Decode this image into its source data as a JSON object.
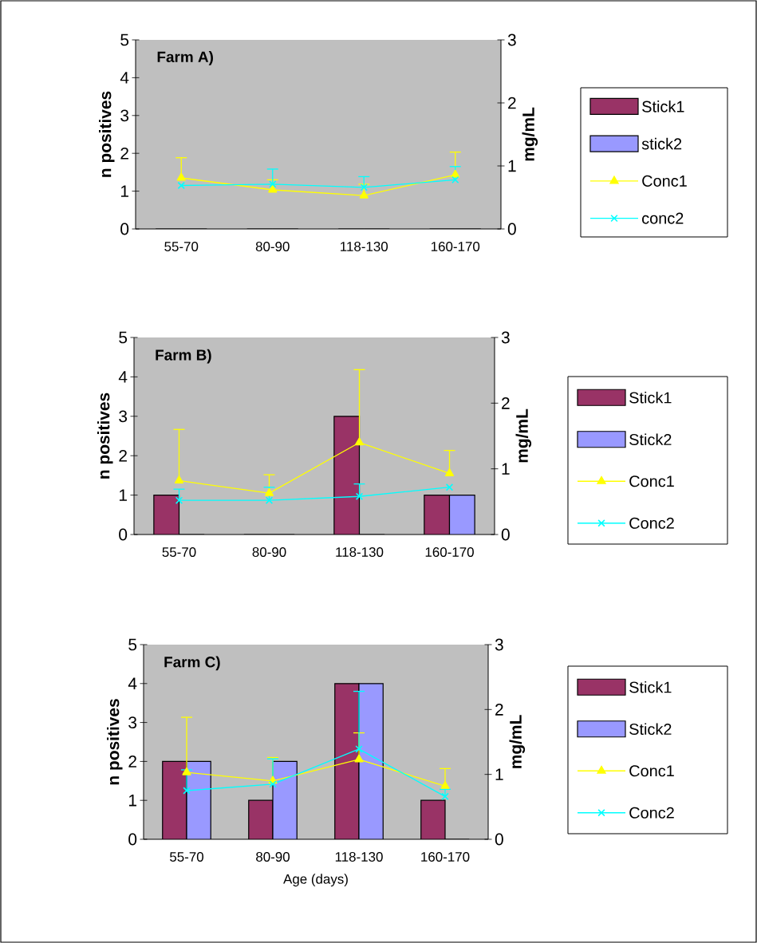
{
  "chart_data": [
    {
      "type": "bar",
      "title": "Farm A)",
      "categories": [
        "55-70",
        "80-90",
        "118-130",
        "160-170"
      ],
      "ylabel": "n positives",
      "y2label": "mg/mL",
      "ylim": [
        0,
        5
      ],
      "yticks": [
        0,
        1,
        2,
        3,
        4,
        5
      ],
      "y2lim": [
        0,
        3
      ],
      "y2ticks": [
        0,
        1,
        2,
        3
      ],
      "legend": "right",
      "series": [
        {
          "name": "Stick1",
          "color": "#993366",
          "values": [
            0,
            0,
            0,
            0
          ]
        },
        {
          "name": "stick2",
          "color": "#9999ff",
          "values": [
            0,
            0,
            0,
            0
          ]
        },
        {
          "name": "Conc1",
          "type": "line",
          "axis": "y2",
          "marker": "triangle",
          "color": "#ffff00",
          "values": [
            0.81,
            0.62,
            0.53,
            0.86
          ],
          "errors": [
            [
              0.81,
              1.13
            ],
            [
              0.62,
              0.78
            ],
            [
              0.53,
              0.71
            ],
            [
              0.86,
              1.22
            ]
          ]
        },
        {
          "name": "conc2",
          "type": "line",
          "axis": "y2",
          "marker": "cross",
          "color": "#00ffff",
          "values": [
            0.69,
            0.71,
            0.66,
            0.78
          ],
          "errors": [
            null,
            [
              0.71,
              0.95
            ],
            [
              0.66,
              0.83
            ],
            [
              0.78,
              0.99
            ]
          ]
        }
      ]
    },
    {
      "type": "bar",
      "title": "Farm B)",
      "categories": [
        "55-70",
        "80-90",
        "118-130",
        "160-170"
      ],
      "ylabel": "n positives",
      "y2label": "mg/mL",
      "ylim": [
        0,
        5
      ],
      "yticks": [
        0,
        1,
        2,
        3,
        4,
        5
      ],
      "y2lim": [
        0,
        3
      ],
      "y2ticks": [
        0,
        1,
        2,
        3
      ],
      "legend": "right",
      "series": [
        {
          "name": "Stick1",
          "color": "#993366",
          "values": [
            1,
            0,
            3,
            1
          ]
        },
        {
          "name": "Stick2",
          "color": "#9999ff",
          "values": [
            0,
            0,
            0,
            1
          ]
        },
        {
          "name": "Conc1",
          "type": "line",
          "axis": "y2",
          "marker": "triangle",
          "color": "#ffff00",
          "values": [
            0.82,
            0.63,
            1.4,
            0.93
          ],
          "errors": [
            [
              0.82,
              1.6
            ],
            [
              0.63,
              0.91
            ],
            [
              1.4,
              2.51
            ],
            [
              0.93,
              1.28
            ]
          ]
        },
        {
          "name": "Conc2",
          "type": "line",
          "axis": "y2",
          "marker": "cross",
          "color": "#00ffff",
          "values": [
            0.52,
            0.52,
            0.58,
            0.72
          ],
          "errors": [
            [
              0.52,
              0.69
            ],
            [
              0.52,
              0.72
            ],
            [
              0.58,
              0.77
            ],
            null
          ]
        }
      ]
    },
    {
      "type": "bar",
      "title": "Farm C)",
      "categories": [
        "55-70",
        "80-90",
        "118-130",
        "160-170"
      ],
      "xlabel": "Age (days)",
      "ylabel": "n positives",
      "y2label": "mg/mL",
      "ylim": [
        0,
        5
      ],
      "yticks": [
        0,
        1,
        2,
        3,
        4,
        5
      ],
      "y2lim": [
        0,
        3
      ],
      "y2ticks": [
        0,
        1,
        2,
        3
      ],
      "legend": "right",
      "series": [
        {
          "name": "Stick1",
          "color": "#993366",
          "values": [
            2,
            1,
            4,
            1
          ]
        },
        {
          "name": "Stick2",
          "color": "#9999ff",
          "values": [
            2,
            2,
            4,
            0
          ]
        },
        {
          "name": "Conc1",
          "type": "line",
          "axis": "y2",
          "marker": "triangle",
          "color": "#ffff00",
          "values": [
            1.03,
            0.9,
            1.23,
            0.82
          ],
          "errors": [
            [
              1.03,
              1.88
            ],
            [
              0.9,
              1.26
            ],
            [
              1.23,
              1.64
            ],
            [
              0.82,
              1.09
            ]
          ]
        },
        {
          "name": "Conc2",
          "type": "line",
          "axis": "y2",
          "marker": "cross",
          "color": "#00ffff",
          "values": [
            0.75,
            0.85,
            1.39,
            0.66
          ],
          "errors": [
            [
              0.75,
              1.07
            ],
            [
              0.85,
              1.24
            ],
            [
              1.39,
              2.28
            ],
            [
              0.66,
              0.77
            ]
          ]
        }
      ]
    }
  ]
}
